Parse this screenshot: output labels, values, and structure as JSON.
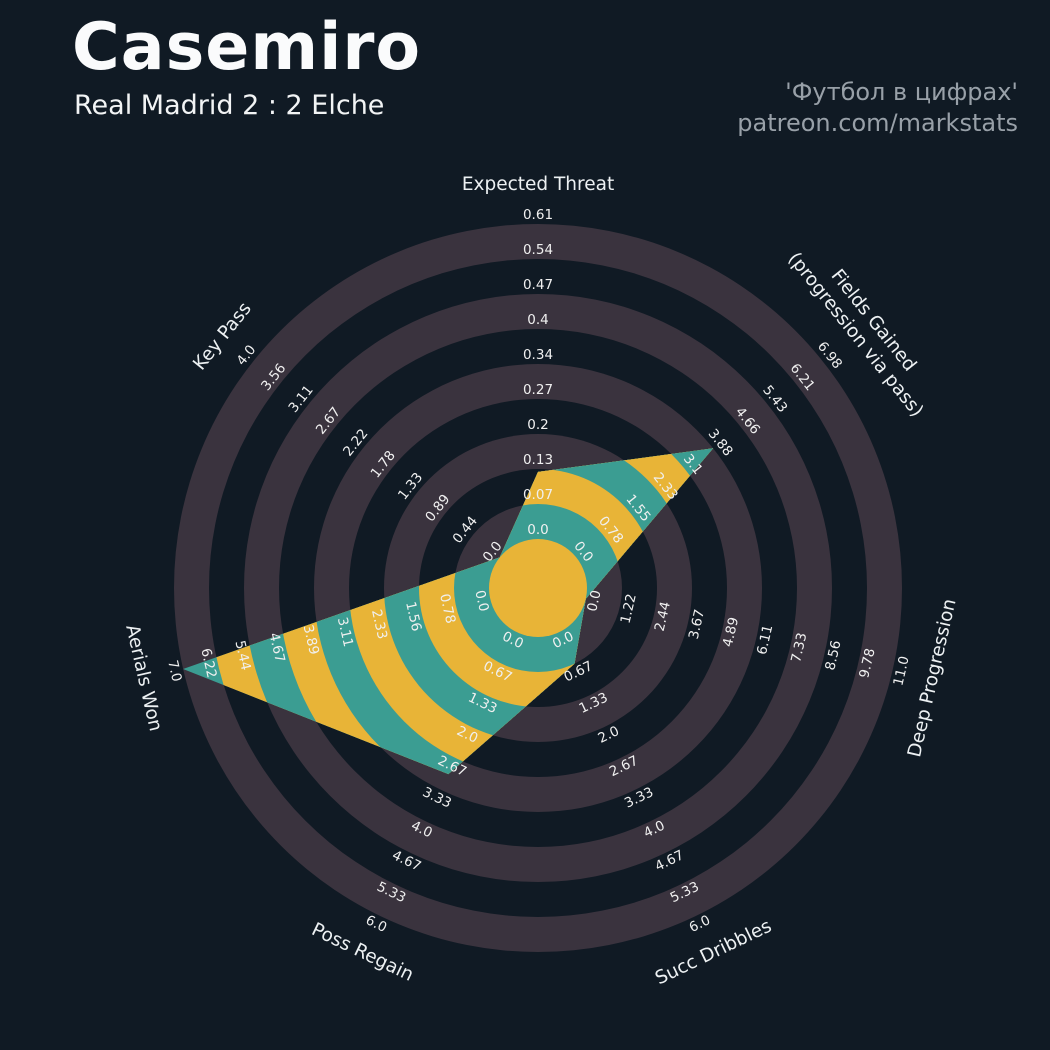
{
  "header": {
    "title": "Casemiro",
    "subtitle": "Real Madrid 2 : 2 Elche",
    "credit_line1": "'Футбол в цифрах'",
    "credit_line2": "patreon.com/markstats"
  },
  "colors": {
    "background": "#101A24",
    "ring_dark": "#101A24",
    "ring_mauve": "#3A333E",
    "radar_teal": "#3B9D92",
    "radar_yellow": "#E8B437",
    "tick_text": "#F0F0F0",
    "axis_label_text": "#EDF1F3",
    "title_text": "#FAFBFC",
    "credit_text": "#98A0A8"
  },
  "chart_data": {
    "type": "radar",
    "title": "Casemiro",
    "subtitle": "Real Madrid 2 : 2 Elche",
    "rings": 9,
    "legend_position": "none",
    "grid": "concentric-alternating-rings",
    "params": [
      {
        "label": "Expected Threat",
        "lines": [
          "Expected Threat"
        ],
        "max": 0.61,
        "value": 0.13,
        "ticks": [
          "0.0",
          "0.07",
          "0.13",
          "0.2",
          "0.27",
          "0.34",
          "0.4",
          "0.47",
          "0.54",
          "0.61"
        ]
      },
      {
        "label": "Fields Gained (progression via pass)",
        "lines": [
          "Fields Gained",
          "(progression via pass)"
        ],
        "max": 6.98,
        "value": 3.88,
        "ticks": [
          "0.0",
          "0.78",
          "1.55",
          "2.33",
          "3.1",
          "3.88",
          "4.66",
          "5.43",
          "6.21",
          "6.98"
        ]
      },
      {
        "label": "Deep Progression",
        "lines": [
          "Deep Progression"
        ],
        "max": 11.0,
        "value": 0.0,
        "ticks": [
          "0.0",
          "1.22",
          "2.44",
          "3.67",
          "4.89",
          "6.11",
          "7.33",
          "8.56",
          "9.78",
          "11.0"
        ]
      },
      {
        "label": "Succ Dribbles",
        "lines": [
          "Succ Dribbles"
        ],
        "max": 6.0,
        "value": 0.67,
        "ticks": [
          "0.0",
          "0.67",
          "1.33",
          "2.0",
          "2.67",
          "3.33",
          "4.0",
          "4.67",
          "5.33",
          "6.0"
        ]
      },
      {
        "label": "Poss Regain",
        "lines": [
          "Poss Regain"
        ],
        "max": 6.0,
        "value": 3.0,
        "ticks": [
          "0.0",
          "0.67",
          "1.33",
          "2.0",
          "2.67",
          "3.33",
          "4.0",
          "4.67",
          "5.33",
          "6.0"
        ]
      },
      {
        "label": "Aerials Won",
        "lines": [
          "Aerials Won"
        ],
        "max": 7.0,
        "value": 7.0,
        "ticks": [
          "0.0",
          "0.78",
          "1.56",
          "2.33",
          "3.11",
          "3.89",
          "4.67",
          "5.44",
          "6.22",
          "7.0"
        ]
      },
      {
        "label": "Key Pass",
        "lines": [
          "Key Pass"
        ],
        "max": 4.0,
        "value": 0.0,
        "ticks": [
          "0.0",
          "0.44",
          "0.89",
          "1.33",
          "1.78",
          "2.22",
          "2.67",
          "3.11",
          "3.56",
          "4.0"
        ]
      }
    ]
  }
}
